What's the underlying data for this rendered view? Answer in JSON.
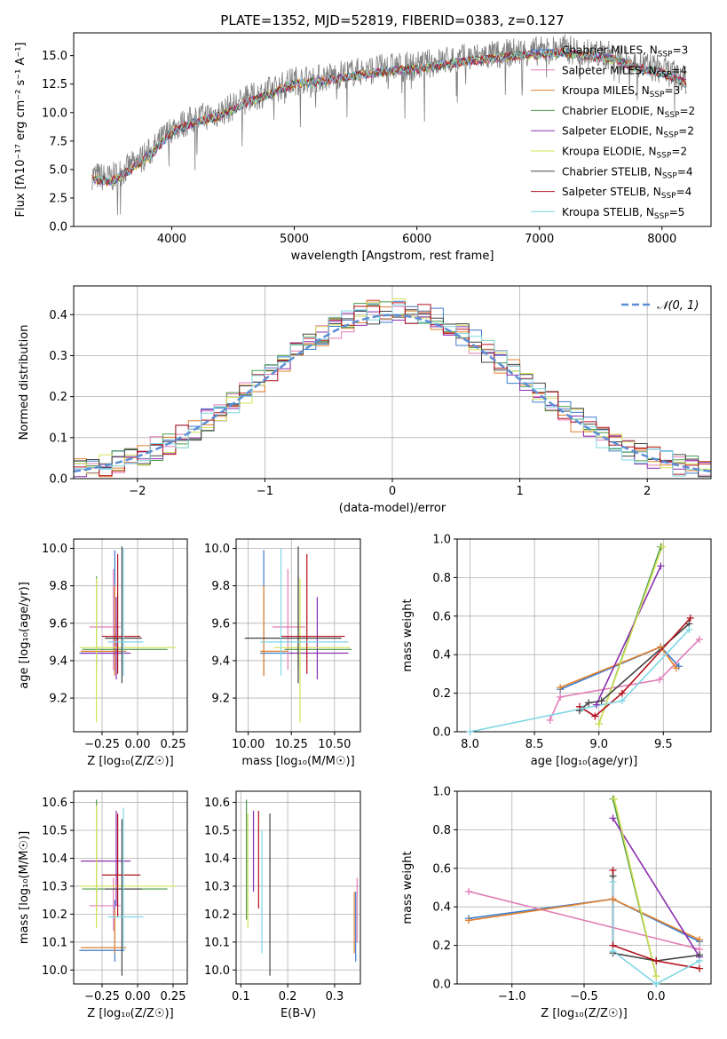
{
  "figure": {
    "title": "PLATE=1352, MJD=52819, FIBERID=0383, z=0.127"
  },
  "models": [
    {
      "name": "Chabrier MILES",
      "nssp": "3",
      "color": "#3d7ccf"
    },
    {
      "name": "Salpeter MILES",
      "nssp": "4",
      "color": "#e37db7"
    },
    {
      "name": "Kroupa MILES",
      "nssp": "3",
      "color": "#e0812d"
    },
    {
      "name": "Chabrier ELODIE",
      "nssp": "2",
      "color": "#4a9a4a"
    },
    {
      "name": "Salpeter ELODIE",
      "nssp": "2",
      "color": "#8b2fb0"
    },
    {
      "name": "Kroupa ELODIE",
      "nssp": "2",
      "color": "#d4e157"
    },
    {
      "name": "Chabrier STELIB",
      "nssp": "4",
      "color": "#444444"
    },
    {
      "name": "Salpeter STELIB",
      "nssp": "4",
      "color": "#b3101b"
    },
    {
      "name": "Kroupa STELIB",
      "nssp": "5",
      "color": "#7fd6e4"
    }
  ],
  "chart_data": [
    {
      "id": "spectrum",
      "type": "line",
      "title": "PLATE=1352, MJD=52819, FIBERID=0383, z=0.127",
      "xlabel": "wavelength [Angstrom, rest frame]",
      "ylabel": "Flux [fλ10⁻¹⁷ erg cm⁻² s⁻¹ A⁻¹]",
      "xlim": [
        3200,
        8400
      ],
      "ylim": [
        0,
        17
      ],
      "xticks": [
        4000,
        5000,
        6000,
        7000,
        8000
      ],
      "yticks": [
        0.0,
        2.5,
        5.0,
        7.5,
        10.0,
        12.5,
        15.0
      ],
      "data_color": "#808080",
      "data_envelope": [
        [
          3350,
          4.5
        ],
        [
          3500,
          4.2
        ],
        [
          3700,
          5.5
        ],
        [
          3850,
          6.8
        ],
        [
          4000,
          8.6
        ],
        [
          4200,
          9.5
        ],
        [
          4400,
          10.0
        ],
        [
          4600,
          11.1
        ],
        [
          4800,
          11.9
        ],
        [
          5000,
          12.8
        ],
        [
          5200,
          13.0
        ],
        [
          5400,
          13.4
        ],
        [
          5600,
          13.7
        ],
        [
          5800,
          14.0
        ],
        [
          6000,
          14.1
        ],
        [
          6200,
          14.5
        ],
        [
          6400,
          14.8
        ],
        [
          6600,
          15.0
        ],
        [
          6800,
          15.3
        ],
        [
          7000,
          15.4
        ],
        [
          7200,
          15.6
        ],
        [
          7400,
          15.2
        ],
        [
          7600,
          15.0
        ],
        [
          7800,
          14.2
        ],
        [
          8000,
          13.8
        ],
        [
          8200,
          12.8
        ]
      ],
      "model_range": [
        3350,
        8200
      ],
      "legend_position": "upper right",
      "grid": false
    },
    {
      "id": "residuals",
      "type": "histogram",
      "xlabel": "(data-model)/error",
      "ylabel": "Normed distribution",
      "xlim": [
        -2.5,
        2.5
      ],
      "ylim": [
        0,
        0.47
      ],
      "xticks": [
        -2,
        -1,
        0,
        1,
        2
      ],
      "yticks": [
        0.0,
        0.1,
        0.2,
        0.3,
        0.4
      ],
      "bin_width": 0.1,
      "gaussian_label": "𝒩(0, 1)",
      "gaussian_color": "#5b8ed6",
      "legend_position": "upper right",
      "grid": true
    },
    {
      "id": "age-vs-Z",
      "type": "errorbar",
      "xlabel": "Z [log₁₀(Z/Z☉)]",
      "ylabel": "age  [log₁₀(age/yr)]",
      "xlim": [
        -0.45,
        0.35
      ],
      "ylim": [
        9.02,
        10.05
      ],
      "xticks": [
        -0.25,
        0.0,
        0.25
      ],
      "yticks": [
        9.2,
        9.4,
        9.6,
        9.8,
        10.0
      ],
      "points": [
        {
          "model": 0,
          "x": -0.16,
          "xerr": [
            0.25,
            0.07
          ],
          "y": 9.44,
          "yerr": [
            0.12,
            0.55
          ]
        },
        {
          "model": 1,
          "x": -0.17,
          "xerr": [
            0.17,
            0.05
          ],
          "y": 9.58,
          "yerr": [
            0.23,
            0.31
          ]
        },
        {
          "model": 2,
          "x": -0.16,
          "xerr": [
            0.24,
            0.08
          ],
          "y": 9.45,
          "yerr": [
            0.13,
            0.35
          ]
        },
        {
          "model": 3,
          "x": -0.29,
          "xerr": [
            0.1,
            0.5
          ],
          "y": 9.46,
          "yerr": [
            0.11,
            0.39
          ]
        },
        {
          "model": 4,
          "x": -0.15,
          "xerr": [
            0.25,
            0.1
          ],
          "y": 9.44,
          "yerr": [
            0.14,
            0.3
          ]
        },
        {
          "model": 5,
          "x": -0.29,
          "xerr": [
            0.12,
            0.56
          ],
          "y": 9.47,
          "yerr": [
            0.4,
            0.37
          ]
        },
        {
          "model": 6,
          "x": -0.11,
          "xerr": [
            0.12,
            0.14
          ],
          "y": 9.52,
          "yerr": [
            0.24,
            0.49
          ]
        },
        {
          "model": 7,
          "x": -0.14,
          "xerr": [
            0.11,
            0.16
          ],
          "y": 9.53,
          "yerr": [
            0.2,
            0.44
          ]
        },
        {
          "model": 8,
          "x": -0.1,
          "xerr": [
            0.11,
            0.14
          ],
          "y": 9.5,
          "yerr": [
            0.18,
            0.5
          ]
        }
      ],
      "grid": true
    },
    {
      "id": "age-vs-mass",
      "type": "errorbar",
      "xlabel": "mass [log₁₀(M/M☉)]",
      "ylabel": "",
      "xlim": [
        9.93,
        10.65
      ],
      "ylim": [
        9.02,
        10.05
      ],
      "xticks": [
        10.0,
        10.25,
        10.5
      ],
      "yticks": [
        9.2,
        9.4,
        9.6,
        9.8,
        10.0
      ],
      "points": [
        {
          "model": 0,
          "x": 10.09,
          "xerr": [
            0.02,
            0.17
          ],
          "y": 9.44,
          "yerr": [
            0.12,
            0.55
          ]
        },
        {
          "model": 1,
          "x": 10.23,
          "xerr": [
            0.09,
            0.1
          ],
          "y": 9.58,
          "yerr": [
            0.23,
            0.31
          ]
        },
        {
          "model": 2,
          "x": 10.09,
          "xerr": [
            0.02,
            0.14
          ],
          "y": 9.45,
          "yerr": [
            0.13,
            0.35
          ]
        },
        {
          "model": 3,
          "x": 10.29,
          "xerr": [
            0.08,
            0.31
          ],
          "y": 9.46,
          "yerr": [
            0.11,
            0.39
          ]
        },
        {
          "model": 4,
          "x": 10.4,
          "xerr": [
            0.16,
            0.18
          ],
          "y": 9.44,
          "yerr": [
            0.14,
            0.3
          ]
        },
        {
          "model": 5,
          "x": 10.3,
          "xerr": [
            0.15,
            0.29
          ],
          "y": 9.47,
          "yerr": [
            0.4,
            0.37
          ]
        },
        {
          "model": 6,
          "x": 10.29,
          "xerr": [
            0.31,
            0.25
          ],
          "y": 9.52,
          "yerr": [
            0.24,
            0.49
          ]
        },
        {
          "model": 7,
          "x": 10.34,
          "xerr": [
            0.15,
            0.22
          ],
          "y": 9.53,
          "yerr": [
            0.2,
            0.44
          ]
        },
        {
          "model": 8,
          "x": 10.19,
          "xerr": [
            0.12,
            0.39
          ],
          "y": 9.5,
          "yerr": [
            0.18,
            0.5
          ]
        }
      ],
      "grid": true
    },
    {
      "id": "mass-weight-vs-age",
      "type": "line",
      "xlabel": "age  [log₁₀(age/yr)]",
      "ylabel": "mass weight",
      "xlim": [
        7.9,
        9.87
      ],
      "ylim": [
        0,
        1.0
      ],
      "xticks": [
        8.0,
        8.5,
        9.0,
        9.5
      ],
      "yticks": [
        0.0,
        0.2,
        0.4,
        0.6,
        0.8,
        1.0
      ],
      "series": [
        {
          "model": 0,
          "x": [
            8.7,
            9.48,
            9.62
          ],
          "y": [
            0.22,
            0.44,
            0.34
          ]
        },
        {
          "model": 1,
          "x": [
            8.62,
            8.7,
            9.47,
            9.78
          ],
          "y": [
            0.06,
            0.18,
            0.27,
            0.48
          ]
        },
        {
          "model": 2,
          "x": [
            8.7,
            9.48,
            9.6
          ],
          "y": [
            0.23,
            0.44,
            0.33
          ]
        },
        {
          "model": 3,
          "x": [
            9.0,
            9.48
          ],
          "y": [
            0.04,
            0.96
          ]
        },
        {
          "model": 4,
          "x": [
            8.98,
            9.48
          ],
          "y": [
            0.14,
            0.86
          ]
        },
        {
          "model": 5,
          "x": [
            9.0,
            9.49
          ],
          "y": [
            0.04,
            0.96
          ]
        },
        {
          "model": 6,
          "x": [
            8.85,
            8.92,
            9.02,
            9.7
          ],
          "y": [
            0.11,
            0.15,
            0.16,
            0.56
          ]
        },
        {
          "model": 7,
          "x": [
            8.85,
            8.97,
            9.18,
            9.71
          ],
          "y": [
            0.13,
            0.08,
            0.2,
            0.59
          ]
        },
        {
          "model": 8,
          "x": [
            8.0,
            8.87,
            9.18,
            9.7
          ],
          "y": [
            0.0,
            0.12,
            0.16,
            0.53
          ]
        }
      ],
      "grid": true
    },
    {
      "id": "mass-vs-Z",
      "type": "errorbar",
      "xlabel": "Z [log₁₀(Z/Z☉)]",
      "ylabel": "mass [log₁₀(M/M☉)]",
      "xlim": [
        -0.45,
        0.35
      ],
      "ylim": [
        9.95,
        10.64
      ],
      "xticks": [
        -0.25,
        0.0,
        0.25
      ],
      "yticks": [
        10.0,
        10.1,
        10.2,
        10.3,
        10.4,
        10.5,
        10.6
      ],
      "points": [
        {
          "model": 0,
          "x": -0.16,
          "xerr": [
            0.25,
            0.07
          ],
          "y": 10.07,
          "yerr": [
            0.04,
            0.18
          ]
        },
        {
          "model": 1,
          "x": -0.17,
          "xerr": [
            0.17,
            0.05
          ],
          "y": 10.23,
          "yerr": [
            0.09,
            0.1
          ]
        },
        {
          "model": 2,
          "x": -0.16,
          "xerr": [
            0.24,
            0.08
          ],
          "y": 10.08,
          "yerr": [
            0.02,
            0.14
          ]
        },
        {
          "model": 3,
          "x": -0.29,
          "xerr": [
            0.1,
            0.5
          ],
          "y": 10.29,
          "yerr": [
            0.08,
            0.32
          ]
        },
        {
          "model": 4,
          "x": -0.15,
          "xerr": [
            0.25,
            0.1
          ],
          "y": 10.39,
          "yerr": [
            0.16,
            0.18
          ]
        },
        {
          "model": 5,
          "x": -0.29,
          "xerr": [
            0.12,
            0.56
          ],
          "y": 10.3,
          "yerr": [
            0.15,
            0.29
          ]
        },
        {
          "model": 6,
          "x": -0.11,
          "xerr": [
            0.12,
            0.14
          ],
          "y": 10.29,
          "yerr": [
            0.31,
            0.25
          ]
        },
        {
          "model": 7,
          "x": -0.14,
          "xerr": [
            0.11,
            0.16
          ],
          "y": 10.34,
          "yerr": [
            0.15,
            0.22
          ]
        },
        {
          "model": 8,
          "x": -0.1,
          "xerr": [
            0.11,
            0.14
          ],
          "y": 10.19,
          "yerr": [
            0.12,
            0.39
          ]
        }
      ],
      "grid": true
    },
    {
      "id": "mass-vs-ebv",
      "type": "errorbar",
      "xlabel": "E(B-V)",
      "ylabel": "",
      "xlim": [
        0.09,
        0.355
      ],
      "ylim": [
        9.95,
        10.64
      ],
      "xticks": [
        0.1,
        0.2,
        0.3
      ],
      "yticks": [
        10.0,
        10.1,
        10.2,
        10.3,
        10.4,
        10.5,
        10.6
      ],
      "points": [
        {
          "model": 0,
          "x": 0.345,
          "y": 10.16,
          "yerr": [
            0.13,
            0.12
          ]
        },
        {
          "model": 1,
          "x": 0.348,
          "y": 10.22,
          "yerr": [
            0.12,
            0.11
          ]
        },
        {
          "model": 2,
          "x": 0.342,
          "y": 10.17,
          "yerr": [
            0.11,
            0.11
          ]
        },
        {
          "model": 3,
          "x": 0.112,
          "y": 10.48,
          "yerr": [
            0.3,
            0.13
          ]
        },
        {
          "model": 4,
          "x": 0.127,
          "y": 10.41,
          "yerr": [
            0.13,
            0.16
          ]
        },
        {
          "model": 5,
          "x": 0.115,
          "y": 10.35,
          "yerr": [
            0.2,
            0.21
          ]
        },
        {
          "model": 6,
          "x": 0.162,
          "y": 10.3,
          "yerr": [
            0.32,
            0.26
          ]
        },
        {
          "model": 7,
          "x": 0.138,
          "y": 10.38,
          "yerr": [
            0.16,
            0.19
          ]
        },
        {
          "model": 8,
          "x": 0.145,
          "y": 10.26,
          "yerr": [
            0.2,
            0.24
          ]
        }
      ],
      "grid": true
    },
    {
      "id": "mass-weight-vs-Z",
      "type": "line",
      "xlabel": "Z [log₁₀(Z/Z☉)]",
      "ylabel": "mass weight",
      "xlim": [
        -1.38,
        0.38
      ],
      "ylim": [
        0,
        1.0
      ],
      "xticks": [
        -1.0,
        -0.5,
        0.0
      ],
      "yticks": [
        0.0,
        0.2,
        0.4,
        0.6,
        0.8,
        1.0
      ],
      "series": [
        {
          "model": 0,
          "x": [
            -1.3,
            -0.3,
            0.3
          ],
          "y": [
            0.34,
            0.44,
            0.22
          ]
        },
        {
          "model": 1,
          "x": [
            -1.3,
            0.3
          ],
          "y": [
            0.48,
            0.18
          ]
        },
        {
          "model": 2,
          "x": [
            -1.3,
            -0.3,
            0.3
          ],
          "y": [
            0.33,
            0.44,
            0.23
          ]
        },
        {
          "model": 3,
          "x": [
            -0.3,
            0.0
          ],
          "y": [
            0.96,
            0.04
          ]
        },
        {
          "model": 4,
          "x": [
            -0.3,
            0.3
          ],
          "y": [
            0.86,
            0.14
          ]
        },
        {
          "model": 5,
          "x": [
            -0.29,
            0.0
          ],
          "y": [
            0.96,
            0.04
          ]
        },
        {
          "model": 6,
          "x": [
            -0.3,
            -0.3,
            0.0,
            0.3
          ],
          "y": [
            0.56,
            0.16,
            0.12,
            0.15
          ]
        },
        {
          "model": 7,
          "x": [
            -0.3,
            -0.3,
            0.0,
            0.3
          ],
          "y": [
            0.59,
            0.2,
            0.12,
            0.08
          ]
        },
        {
          "model": 8,
          "x": [
            -0.3,
            -0.3,
            0.0,
            0.3
          ],
          "y": [
            0.53,
            0.17,
            0.0,
            0.12
          ]
        }
      ],
      "grid": true
    }
  ]
}
